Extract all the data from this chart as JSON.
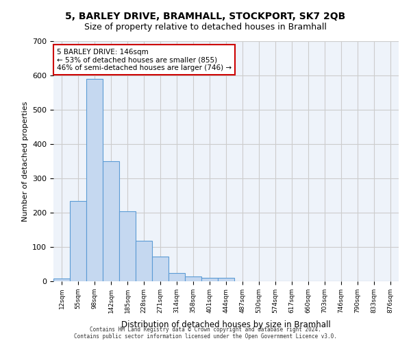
{
  "title": "5, BARLEY DRIVE, BRAMHALL, STOCKPORT, SK7 2QB",
  "subtitle": "Size of property relative to detached houses in Bramhall",
  "xlabel": "Distribution of detached houses by size in Bramhall",
  "ylabel": "Number of detached properties",
  "bar_labels": [
    "12sqm",
    "55sqm",
    "98sqm",
    "142sqm",
    "185sqm",
    "228sqm",
    "271sqm",
    "314sqm",
    "358sqm",
    "401sqm",
    "444sqm",
    "487sqm",
    "530sqm",
    "574sqm",
    "617sqm",
    "660sqm",
    "703sqm",
    "746sqm",
    "790sqm",
    "833sqm",
    "876sqm"
  ],
  "bar_values": [
    8,
    235,
    590,
    350,
    205,
    118,
    72,
    25,
    15,
    10,
    10,
    0,
    0,
    0,
    0,
    0,
    0,
    0,
    0,
    0,
    0
  ],
  "bar_color": "#c5d8f0",
  "bar_edge_color": "#5b9bd5",
  "highlight_bar_index": 3,
  "highlight_bar_color": "#c5d8f0",
  "highlight_bar_edge_color": "#5b9bd5",
  "annotation_text": "5 BARLEY DRIVE: 146sqm\n← 53% of detached houses are smaller (855)\n46% of semi-detached houses are larger (746) →",
  "annotation_box_color": "#ffffff",
  "annotation_box_edge_color": "#cc0000",
  "ylim": [
    0,
    700
  ],
  "yticks": [
    0,
    100,
    200,
    300,
    400,
    500,
    600,
    700
  ],
  "grid_color": "#cccccc",
  "bg_color": "#eef3fa",
  "footer_line1": "Contains HM Land Registry data © Crown copyright and database right 2024.",
  "footer_line2": "Contains public sector information licensed under the Open Government Licence v3.0."
}
